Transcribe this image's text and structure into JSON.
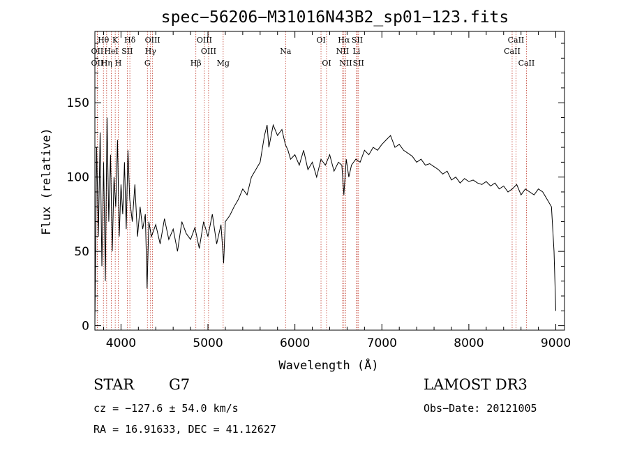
{
  "chart_data": {
    "type": "line",
    "title": "spec−56206−M31016N43B2_sp01−123.fits",
    "xlabel": "Wavelength (Å)",
    "ylabel": "Flux (relative)",
    "xlim": [
      3700,
      9100
    ],
    "ylim": [
      -3,
      198
    ],
    "x_ticks": [
      4000,
      5000,
      6000,
      7000,
      8000,
      9000
    ],
    "y_ticks": [
      0,
      50,
      100,
      150
    ],
    "grid": false,
    "series": [
      {
        "name": "flux",
        "x": [
          3700,
          3720,
          3740,
          3760,
          3780,
          3800,
          3820,
          3840,
          3860,
          3880,
          3900,
          3920,
          3940,
          3960,
          3980,
          4000,
          4020,
          4040,
          4060,
          4080,
          4100,
          4130,
          4160,
          4190,
          4220,
          4250,
          4280,
          4300,
          4320,
          4350,
          4400,
          4450,
          4500,
          4550,
          4600,
          4650,
          4700,
          4750,
          4800,
          4850,
          4900,
          4950,
          5000,
          5050,
          5100,
          5150,
          5180,
          5200,
          5250,
          5300,
          5350,
          5400,
          5450,
          5500,
          5550,
          5600,
          5650,
          5680,
          5700,
          5750,
          5800,
          5850,
          5890,
          5920,
          5950,
          6000,
          6050,
          6100,
          6150,
          6200,
          6250,
          6300,
          6350,
          6400,
          6450,
          6500,
          6540,
          6563,
          6590,
          6620,
          6650,
          6700,
          6750,
          6800,
          6850,
          6900,
          6950,
          7000,
          7050,
          7100,
          7150,
          7200,
          7250,
          7300,
          7350,
          7400,
          7450,
          7500,
          7550,
          7600,
          7650,
          7700,
          7750,
          7800,
          7850,
          7900,
          7950,
          8000,
          8050,
          8100,
          8150,
          8200,
          8250,
          8300,
          8350,
          8400,
          8450,
          8500,
          8550,
          8600,
          8650,
          8700,
          8750,
          8800,
          8850,
          8900,
          8950,
          8980,
          9000
        ],
        "y": [
          2,
          120,
          60,
          130,
          40,
          110,
          30,
          140,
          70,
          115,
          50,
          100,
          80,
          125,
          60,
          95,
          75,
          110,
          65,
          118,
          85,
          70,
          95,
          60,
          80,
          65,
          75,
          25,
          70,
          60,
          68,
          55,
          72,
          58,
          65,
          50,
          70,
          62,
          58,
          66,
          52,
          70,
          60,
          75,
          55,
          68,
          42,
          70,
          74,
          80,
          85,
          92,
          88,
          100,
          105,
          110,
          128,
          135,
          120,
          135,
          128,
          132,
          122,
          118,
          112,
          115,
          108,
          118,
          105,
          110,
          100,
          112,
          108,
          115,
          104,
          110,
          108,
          88,
          112,
          100,
          108,
          112,
          110,
          118,
          115,
          120,
          118,
          122,
          125,
          128,
          120,
          122,
          118,
          116,
          114,
          110,
          112,
          108,
          109,
          107,
          105,
          102,
          104,
          98,
          100,
          96,
          99,
          97,
          98,
          96,
          95,
          97,
          94,
          96,
          92,
          94,
          90,
          92,
          95,
          88,
          92,
          90,
          88,
          92,
          90,
          85,
          80,
          50,
          10
        ]
      }
    ],
    "spectral_lines": [
      {
        "label": "Hθ",
        "x": 3798,
        "row": 1
      },
      {
        "label": "OII",
        "x": 3727,
        "row": 2
      },
      {
        "label": "OII",
        "x": 3727,
        "row": 3
      },
      {
        "label": "K",
        "x": 3934,
        "row": 1
      },
      {
        "label": "HeI",
        "x": 3889,
        "row": 2
      },
      {
        "label": "Hη",
        "x": 3835,
        "row": 3
      },
      {
        "label": "SII",
        "x": 4072,
        "row": 2
      },
      {
        "label": "H",
        "x": 3969,
        "row": 3
      },
      {
        "label": "Hδ",
        "x": 4102,
        "row": 1
      },
      {
        "label": "OIII",
        "x": 4363,
        "row": 1
      },
      {
        "label": "Hγ",
        "x": 4340,
        "row": 2
      },
      {
        "label": "G",
        "x": 4304,
        "row": 3
      },
      {
        "label": "OIII",
        "x": 4959,
        "row": 1
      },
      {
        "label": "OIII",
        "x": 5007,
        "row": 2
      },
      {
        "label": "Hβ",
        "x": 4861,
        "row": 3
      },
      {
        "label": "Mg",
        "x": 5175,
        "row": 3
      },
      {
        "label": "Na",
        "x": 5893,
        "row": 2
      },
      {
        "label": "OI",
        "x": 6300,
        "row": 1
      },
      {
        "label": "OI",
        "x": 6364,
        "row": 3
      },
      {
        "label": "Hα",
        "x": 6563,
        "row": 1
      },
      {
        "label": "SII",
        "x": 6717,
        "row": 1
      },
      {
        "label": "NII",
        "x": 6548,
        "row": 2
      },
      {
        "label": "Li",
        "x": 6708,
        "row": 2
      },
      {
        "label": "NII",
        "x": 6584,
        "row": 3
      },
      {
        "label": "SII",
        "x": 6731,
        "row": 3
      },
      {
        "label": "CaII",
        "x": 8542,
        "row": 1
      },
      {
        "label": "CaII",
        "x": 8498,
        "row": 2
      },
      {
        "label": "CaII",
        "x": 8662,
        "row": 3
      }
    ]
  },
  "info": {
    "object_class": "STAR",
    "subclass": "G7",
    "survey": "LAMOST DR3",
    "cz": "cz = −127.6 ± 54.0 km/s",
    "obs_date": "Obs−Date: 20121005",
    "coords": "RA =  16.91633, DEC =  41.12627"
  },
  "colors": {
    "spectrum": "#000000",
    "line_markers": "#c0392b",
    "axes": "#000000"
  }
}
